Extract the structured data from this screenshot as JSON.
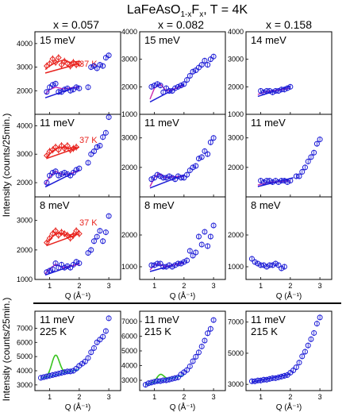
{
  "figure": {
    "title_main": "LaFeAsO",
    "title_sub": "1-x",
    "title_rest": "F",
    "title_sub2": "x",
    "title_tail": ", T = 4K",
    "columns": [
      "x = 0.057",
      "x = 0.082",
      "x = 0.158"
    ],
    "ylabel": "Intensity (counts/25min.)",
    "xlabel": "Q (Å⁻¹)",
    "xticks": [
      "1",
      "2",
      "3"
    ]
  },
  "colors": {
    "data_blue": "#1c1cd6",
    "fit_blue": "#1c1cd6",
    "data_red": "#e8231e",
    "fit_magenta": "#cc2bb0",
    "gaussian_green": "#39c41f",
    "line_cyan": "#3ec6d2",
    "divider": "#000000"
  },
  "chart_data": [
    {
      "type": "scatter",
      "panel": "x=0.057 15 meV",
      "label": "15 meV",
      "annotation": "37 K",
      "ylim": [
        1000,
        4500
      ],
      "yticks": [
        "2000",
        "3000",
        "4000"
      ],
      "xlim": [
        0.5,
        3.4
      ],
      "series": [
        {
          "name": "37 K",
          "color": "red",
          "marker": "diamond",
          "x": [
            0.9,
            1.0,
            1.1,
            1.2,
            1.3,
            1.4,
            1.5,
            1.6,
            1.7,
            1.8,
            1.9,
            2.0
          ],
          "y": [
            3050,
            3150,
            3350,
            3200,
            3400,
            3100,
            3250,
            3150,
            3050,
            3200,
            3100,
            3150
          ],
          "fit": [
            [
              0.8,
              2950
            ],
            [
              1.2,
              3150
            ],
            [
              1.5,
              3250
            ],
            [
              1.8,
              3150
            ],
            [
              2.1,
              3200
            ]
          ]
        },
        {
          "name": "4 K",
          "color": "blue",
          "marker": "circle",
          "x": [
            0.9,
            1.0,
            1.1,
            1.2,
            1.3,
            1.4,
            1.5,
            1.6,
            1.7,
            1.8,
            1.9,
            2.0,
            2.3,
            2.4,
            2.5,
            2.6,
            2.7,
            2.8,
            2.9,
            3.0
          ],
          "y": [
            1950,
            2150,
            2250,
            2300,
            1950,
            1950,
            2050,
            2100,
            2000,
            2050,
            2150,
            2100,
            2150,
            3000,
            3050,
            2950,
            3100,
            3050,
            3400,
            3500
          ],
          "fit": [
            [
              0.8,
              1850
            ],
            [
              1.2,
              2150
            ],
            [
              1.5,
              2050
            ],
            [
              1.8,
              2150
            ],
            [
              2.1,
              2200
            ]
          ]
        }
      ]
    },
    {
      "type": "scatter",
      "panel": "x=0.082 15 meV",
      "label": "15 meV",
      "ylim": [
        1000,
        4000
      ],
      "yticks": [
        "1000",
        "2000",
        "3000",
        "4000"
      ],
      "xlim": [
        0.5,
        3.4
      ],
      "series": [
        {
          "name": "4 K",
          "x": [
            0.9,
            1.0,
            1.1,
            1.2,
            1.3,
            1.4,
            1.5,
            1.6,
            1.7,
            1.8,
            1.9,
            2.0,
            2.1,
            2.2,
            2.3,
            2.4,
            2.5,
            2.6,
            2.7,
            2.8,
            2.9,
            3.0
          ],
          "y": [
            2000,
            2050,
            2100,
            2050,
            1800,
            1950,
            1850,
            1850,
            1950,
            2000,
            2050,
            2100,
            2250,
            2400,
            2550,
            2600,
            2700,
            2800,
            2950,
            2800,
            3000,
            3100
          ],
          "fit": [
            [
              0.8,
              1500
            ],
            [
              1.1,
              2050
            ],
            [
              1.4,
              1900
            ],
            [
              1.8,
              2050
            ],
            [
              2.1,
              2150
            ]
          ]
        }
      ]
    },
    {
      "type": "scatter",
      "panel": "x=0.158 14 meV",
      "label": "14 meV",
      "ylim": [
        1000,
        4000
      ],
      "yticks": [
        "1000",
        "2000",
        "3000",
        "4000"
      ],
      "xlim": [
        0.5,
        3.4
      ],
      "series": [
        {
          "name": "4 K",
          "x": [
            1.0,
            1.1,
            1.2,
            1.3,
            1.4,
            1.5,
            1.6,
            1.7,
            1.8,
            1.9,
            2.0
          ],
          "y": [
            1850,
            1800,
            1850,
            1850,
            1800,
            1850,
            1850,
            1900,
            1900,
            1950,
            2000
          ],
          "fit": [
            [
              0.9,
              1700
            ],
            [
              1.5,
              1850
            ],
            [
              2.1,
              2050
            ]
          ]
        }
      ]
    },
    {
      "type": "scatter",
      "panel": "x=0.057 11 meV",
      "label": "11 meV",
      "annotation": "37 K",
      "ylim": [
        1500,
        4400
      ],
      "yticks": [
        "2000",
        "3000",
        "4000"
      ],
      "xlim": [
        0.5,
        3.4
      ],
      "series": [
        {
          "name": "37 K",
          "color": "red",
          "marker": "diamond",
          "x": [
            0.9,
            1.0,
            1.1,
            1.2,
            1.3,
            1.4,
            1.5,
            1.6,
            1.7,
            1.8,
            1.9
          ],
          "y": [
            2950,
            3100,
            3150,
            3250,
            3150,
            3300,
            3200,
            3300,
            3150,
            3200,
            3250
          ]
        },
        {
          "name": "4 K",
          "color": "blue",
          "marker": "circle",
          "x": [
            0.9,
            1.0,
            1.1,
            1.2,
            1.3,
            1.4,
            1.5,
            1.6,
            1.7,
            1.8,
            1.9,
            2.0,
            2.3,
            2.4,
            2.5,
            2.6,
            2.7,
            2.8,
            2.9,
            3.0
          ],
          "y": [
            2000,
            2250,
            2350,
            2400,
            2250,
            2300,
            2350,
            2300,
            2250,
            2350,
            2450,
            2500,
            2700,
            3000,
            3100,
            3250,
            3300,
            3600,
            3750,
            4300
          ],
          "fit": [
            [
              0.8,
              1900
            ],
            [
              1.2,
              2350
            ],
            [
              1.5,
              2250
            ],
            [
              1.8,
              2350
            ],
            [
              2.1,
              2450
            ]
          ]
        }
      ]
    },
    {
      "type": "scatter",
      "panel": "x=0.082 11 meV",
      "label": "11 meV",
      "ylim": [
        1000,
        3800
      ],
      "yticks": [
        "2000",
        "3000"
      ],
      "xlim": [
        0.5,
        3.4
      ],
      "series": [
        {
          "name": "4 K",
          "x": [
            0.9,
            1.0,
            1.1,
            1.2,
            1.3,
            1.4,
            1.5,
            1.6,
            1.7,
            1.8,
            1.9,
            2.0,
            2.1,
            2.2,
            2.3,
            2.4,
            2.5,
            2.6,
            2.7,
            2.8,
            2.9,
            3.0
          ],
          "y": [
            1600,
            1650,
            1750,
            1700,
            1650,
            1650,
            1700,
            1650,
            1600,
            1700,
            1650,
            1650,
            1750,
            1900,
            2000,
            2050,
            2300,
            2350,
            2550,
            2450,
            2850,
            3000
          ],
          "fit": [
            [
              0.8,
              1300
            ],
            [
              1.1,
              1750
            ],
            [
              1.4,
              1650
            ],
            [
              1.8,
              1700
            ],
            [
              2.1,
              1750
            ]
          ]
        }
      ]
    },
    {
      "type": "scatter",
      "panel": "x=0.158 11 meV",
      "label": "11 meV",
      "ylim": [
        1000,
        3800
      ],
      "yticks": [
        "2000",
        "3000"
      ],
      "xlim": [
        0.5,
        3.4
      ],
      "series": [
        {
          "name": "4 K",
          "x": [
            1.0,
            1.1,
            1.2,
            1.3,
            1.4,
            1.5,
            1.6,
            1.7,
            1.8,
            1.9,
            2.0,
            2.2,
            2.3,
            2.4,
            2.5,
            2.6,
            2.7,
            2.8,
            2.9,
            3.0
          ],
          "y": [
            1550,
            1500,
            1550,
            1550,
            1500,
            1550,
            1500,
            1550,
            1550,
            1500,
            1550,
            1700,
            1700,
            1850,
            2000,
            2200,
            2350,
            2500,
            2800,
            2950
          ],
          "fit": [
            [
              0.9,
              1350
            ],
            [
              1.5,
              1500
            ],
            [
              2.1,
              1650
            ]
          ]
        }
      ]
    },
    {
      "type": "scatter",
      "panel": "x=0.057 8 meV",
      "label": "8 meV",
      "annotation": "37 K",
      "ylim": [
        1000,
        3800
      ],
      "yticks": [
        "1000",
        "2000",
        "3000"
      ],
      "xlim": [
        0.5,
        3.4
      ],
      "series": [
        {
          "name": "37 K",
          "color": "red",
          "marker": "diamond",
          "x": [
            0.9,
            1.0,
            1.1,
            1.2,
            1.3,
            1.4,
            1.5,
            1.6,
            1.7,
            1.8,
            1.9,
            2.0
          ],
          "y": [
            2250,
            2400,
            2550,
            2650,
            2500,
            2600,
            2550,
            2500,
            2400,
            2500,
            2650,
            2550
          ]
        },
        {
          "name": "4 K",
          "color": "blue",
          "marker": "circle",
          "x": [
            0.9,
            1.0,
            1.1,
            1.2,
            1.3,
            1.4,
            1.5,
            1.6,
            1.7,
            1.8,
            1.9,
            2.0,
            2.3,
            2.4,
            2.5,
            2.6,
            2.7,
            2.8,
            2.9,
            3.0
          ],
          "y": [
            1250,
            1300,
            1350,
            1550,
            1400,
            1500,
            1400,
            1450,
            1400,
            1500,
            1600,
            1550,
            1900,
            2000,
            2300,
            2450,
            2650,
            2300,
            2600,
            3150
          ],
          "fit": [
            [
              0.8,
              1150
            ],
            [
              1.2,
              1450
            ],
            [
              1.5,
              1400
            ],
            [
              1.8,
              1450
            ],
            [
              2.1,
              1550
            ]
          ]
        }
      ]
    },
    {
      "type": "scatter",
      "panel": "x=0.082 8 meV",
      "label": "8 meV",
      "ylim": [
        600,
        3200
      ],
      "yticks": [
        "1000",
        "2000"
      ],
      "xlim": [
        0.5,
        3.4
      ],
      "series": [
        {
          "name": "4 K",
          "x": [
            0.9,
            1.0,
            1.1,
            1.2,
            1.3,
            1.4,
            1.5,
            1.6,
            1.7,
            1.8,
            1.9,
            2.0,
            2.1,
            2.2,
            2.3,
            2.4,
            2.5,
            2.6,
            2.7,
            2.8,
            2.9,
            3.0
          ],
          "y": [
            1050,
            1050,
            1100,
            1100,
            1000,
            1000,
            1050,
            1000,
            1050,
            1100,
            1100,
            1150,
            1200,
            1500,
            1350,
            1450,
            1950,
            1700,
            2100,
            1650,
            1950,
            2300
          ],
          "fit": [
            [
              0.8,
              850
            ],
            [
              1.1,
              1100
            ],
            [
              1.4,
              1000
            ],
            [
              1.8,
              1100
            ],
            [
              2.1,
              1150
            ]
          ]
        }
      ]
    },
    {
      "type": "scatter",
      "panel": "x=0.158 8 meV",
      "label": "8 meV",
      "ylim": [
        600,
        3200
      ],
      "yticks": [
        "1000",
        "2000"
      ],
      "xlim": [
        0.5,
        3.4
      ],
      "series": [
        {
          "name": "4 K",
          "x": [
            0.7,
            0.8,
            0.9,
            1.0,
            1.1,
            1.2,
            1.3,
            1.4,
            1.5,
            1.6,
            1.7,
            1.8
          ],
          "y": [
            1250,
            1150,
            1100,
            1050,
            1050,
            1000,
            1050,
            1050,
            1100,
            1050,
            950,
            1000
          ]
        }
      ]
    },
    {
      "type": "scatter",
      "panel": "bottom x=0.057",
      "label": "11 meV",
      "label2": "225 K",
      "ylim": [
        2600,
        8200
      ],
      "yticks": [
        "3000",
        "4000",
        "5000",
        "6000",
        "7000"
      ],
      "xlim": [
        0.5,
        3.4
      ],
      "series": [
        {
          "name": "225 K",
          "x": [
            0.7,
            0.8,
            0.9,
            1.0,
            1.1,
            1.2,
            1.3,
            1.4,
            1.5,
            1.6,
            1.7,
            1.8,
            1.9,
            2.0,
            2.1,
            2.2,
            2.3,
            2.4,
            2.5,
            2.6,
            2.7,
            2.8,
            2.9,
            3.0
          ],
          "y": [
            3500,
            3550,
            3600,
            3650,
            3700,
            3750,
            3800,
            3850,
            3900,
            3950,
            3950,
            4000,
            4150,
            4350,
            4500,
            4650,
            4900,
            5300,
            5600,
            6000,
            6200,
            6400,
            6800,
            7700
          ]
        }
      ]
    },
    {
      "type": "scatter",
      "panel": "bottom x=0.082",
      "label": "11 meV",
      "label2": "215 K",
      "ylim": [
        2300,
        7700
      ],
      "yticks": [
        "3000",
        "4000",
        "5000",
        "6000",
        "7000"
      ],
      "xlim": [
        0.5,
        3.4
      ],
      "series": [
        {
          "name": "215 K",
          "x": [
            0.7,
            0.8,
            0.9,
            1.0,
            1.1,
            1.2,
            1.3,
            1.4,
            1.5,
            1.6,
            1.7,
            1.8,
            1.9,
            2.0,
            2.1,
            2.2,
            2.3,
            2.4,
            2.5,
            2.6,
            2.7,
            2.8,
            2.9,
            3.0
          ],
          "y": [
            2700,
            2800,
            2850,
            2900,
            2950,
            2950,
            3000,
            3000,
            3050,
            3100,
            3150,
            3200,
            3400,
            3550,
            3700,
            3950,
            4300,
            4600,
            4900,
            5300,
            5700,
            6200,
            6500,
            7100
          ]
        }
      ]
    },
    {
      "type": "scatter",
      "panel": "bottom x=0.158",
      "label": "11 meV",
      "label2": "215 K",
      "ylim": [
        2600,
        7700
      ],
      "yticks": [
        "3000",
        "5000",
        "7000"
      ],
      "xlim": [
        0.5,
        3.4
      ],
      "series": [
        {
          "name": "215 K",
          "x": [
            0.7,
            0.8,
            0.9,
            1.0,
            1.1,
            1.2,
            1.3,
            1.4,
            1.5,
            1.6,
            1.7,
            1.8,
            1.9,
            2.0,
            2.1,
            2.2,
            2.3,
            2.4,
            2.5,
            2.6,
            2.7,
            2.8,
            2.9,
            3.0
          ],
          "y": [
            3200,
            3200,
            3250,
            3250,
            3300,
            3300,
            3350,
            3400,
            3400,
            3450,
            3500,
            3550,
            3600,
            3750,
            3900,
            4100,
            4400,
            4800,
            5100,
            5500,
            5900,
            6300,
            6900,
            7300
          ]
        }
      ]
    }
  ]
}
